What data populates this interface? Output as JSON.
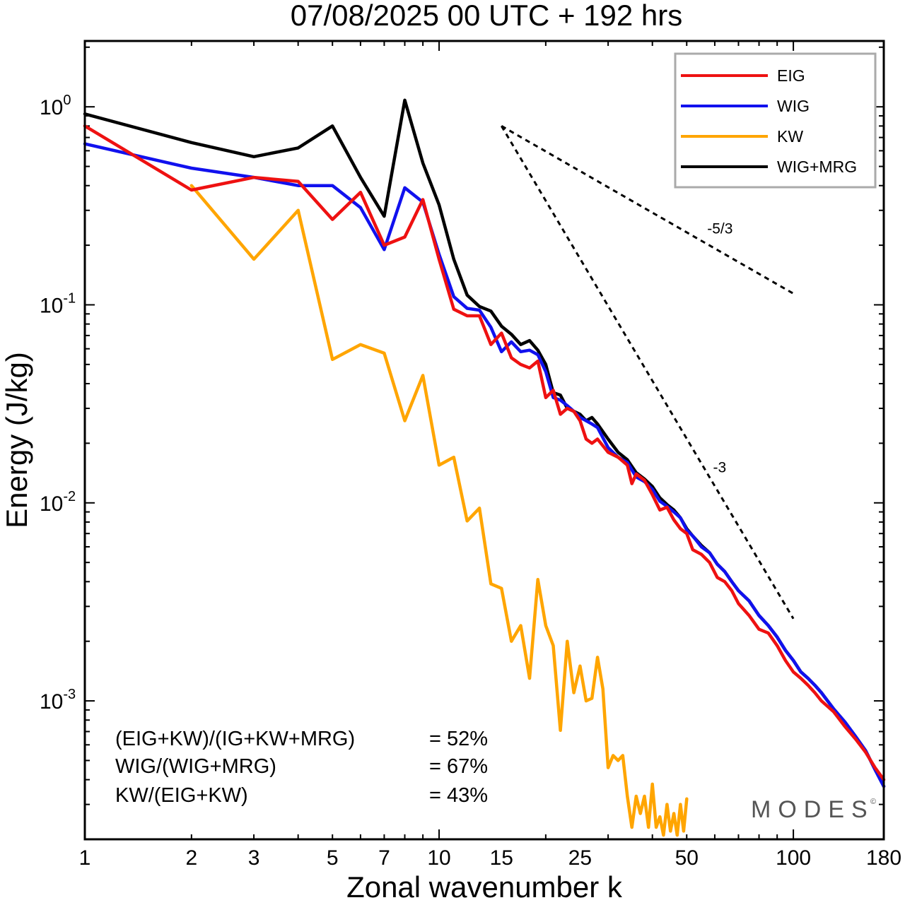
{
  "chart_data": {
    "type": "line",
    "title": "07/08/2025  00 UTC  + 192 hrs",
    "xlabel": "Zonal wavenumber k",
    "ylabel": "Energy (J/kg)",
    "xscale": "log",
    "yscale": "log",
    "xlim": [
      1,
      180
    ],
    "ylim": [
      0.0002,
      2.15
    ],
    "xticks": [
      1,
      2,
      3,
      5,
      7,
      10,
      15,
      25,
      50,
      100,
      180
    ],
    "yticks": [
      {
        "value": 1,
        "base": "10",
        "exp": "0"
      },
      {
        "value": 0.1,
        "base": "10",
        "exp": "-1"
      },
      {
        "value": 0.01,
        "base": "10",
        "exp": "-2"
      },
      {
        "value": 0.001,
        "base": "10",
        "exp": "-3"
      }
    ],
    "legend_position": "top-right",
    "series": [
      {
        "name": "EIG",
        "color": "#ee1111",
        "points": [
          [
            1,
            0.8
          ],
          [
            2,
            0.38
          ],
          [
            3,
            0.44
          ],
          [
            4,
            0.42
          ],
          [
            5,
            0.27
          ],
          [
            6,
            0.37
          ],
          [
            7,
            0.2
          ],
          [
            8,
            0.22
          ],
          [
            9,
            0.34
          ],
          [
            10,
            0.17
          ],
          [
            11,
            0.095
          ],
          [
            12,
            0.088
          ],
          [
            13,
            0.088
          ],
          [
            14,
            0.063
          ],
          [
            15,
            0.072
          ],
          [
            16,
            0.054
          ],
          [
            17,
            0.05
          ],
          [
            18,
            0.048
          ],
          [
            19,
            0.052
          ],
          [
            20,
            0.034
          ],
          [
            21,
            0.037
          ],
          [
            22,
            0.028
          ],
          [
            23,
            0.03
          ],
          [
            24,
            0.029
          ],
          [
            25,
            0.026
          ],
          [
            26,
            0.021
          ],
          [
            27,
            0.02
          ],
          [
            28,
            0.021
          ],
          [
            30,
            0.018
          ],
          [
            32,
            0.017
          ],
          [
            34,
            0.0155
          ],
          [
            35,
            0.0125
          ],
          [
            36,
            0.014
          ],
          [
            38,
            0.013
          ],
          [
            40,
            0.011
          ],
          [
            42,
            0.0092
          ],
          [
            44,
            0.0095
          ],
          [
            46,
            0.0082
          ],
          [
            48,
            0.0074
          ],
          [
            50,
            0.007
          ],
          [
            52,
            0.0058
          ],
          [
            55,
            0.0055
          ],
          [
            58,
            0.005
          ],
          [
            61,
            0.0042
          ],
          [
            64,
            0.004
          ],
          [
            67,
            0.0036
          ],
          [
            70,
            0.0031
          ],
          [
            75,
            0.0027
          ],
          [
            80,
            0.0023
          ],
          [
            85,
            0.0022
          ],
          [
            90,
            0.0019
          ],
          [
            95,
            0.0016
          ],
          [
            100,
            0.0014
          ],
          [
            105,
            0.0013
          ],
          [
            110,
            0.0012
          ],
          [
            115,
            0.0011
          ],
          [
            120,
            0.001
          ],
          [
            130,
            0.00088
          ],
          [
            140,
            0.00074
          ],
          [
            150,
            0.00064
          ],
          [
            160,
            0.00055
          ],
          [
            170,
            0.00046
          ],
          [
            180,
            0.0004
          ]
        ]
      },
      {
        "name": "WIG",
        "color": "#1111ee",
        "points": [
          [
            1,
            0.65
          ],
          [
            2,
            0.49
          ],
          [
            3,
            0.44
          ],
          [
            4,
            0.4
          ],
          [
            5,
            0.4
          ],
          [
            6,
            0.31
          ],
          [
            7,
            0.19
          ],
          [
            8,
            0.39
          ],
          [
            9,
            0.33
          ],
          [
            10,
            0.18
          ],
          [
            11,
            0.11
          ],
          [
            12,
            0.096
          ],
          [
            13,
            0.094
          ],
          [
            14,
            0.077
          ],
          [
            15,
            0.058
          ],
          [
            16,
            0.065
          ],
          [
            17,
            0.058
          ],
          [
            18,
            0.059
          ],
          [
            19,
            0.056
          ],
          [
            20,
            0.046
          ],
          [
            21,
            0.034
          ],
          [
            22,
            0.033
          ],
          [
            23,
            0.031
          ],
          [
            24,
            0.029
          ],
          [
            25,
            0.027
          ],
          [
            26,
            0.026
          ],
          [
            27,
            0.025
          ],
          [
            28,
            0.024
          ],
          [
            30,
            0.019
          ],
          [
            32,
            0.017
          ],
          [
            34,
            0.016
          ],
          [
            36,
            0.0135
          ],
          [
            38,
            0.0128
          ],
          [
            40,
            0.0117
          ],
          [
            42,
            0.0102
          ],
          [
            44,
            0.0096
          ],
          [
            46,
            0.009
          ],
          [
            48,
            0.0084
          ],
          [
            50,
            0.0073
          ],
          [
            52,
            0.0068
          ],
          [
            55,
            0.006
          ],
          [
            58,
            0.0056
          ],
          [
            61,
            0.0049
          ],
          [
            64,
            0.0045
          ],
          [
            67,
            0.004
          ],
          [
            70,
            0.0036
          ],
          [
            75,
            0.0032
          ],
          [
            80,
            0.0027
          ],
          [
            85,
            0.0024
          ],
          [
            90,
            0.0021
          ],
          [
            95,
            0.0018
          ],
          [
            100,
            0.0016
          ],
          [
            105,
            0.0014
          ],
          [
            110,
            0.0013
          ],
          [
            115,
            0.0012
          ],
          [
            120,
            0.0011
          ],
          [
            130,
            0.00091
          ],
          [
            140,
            0.00078
          ],
          [
            150,
            0.00066
          ],
          [
            160,
            0.00056
          ],
          [
            170,
            0.00045
          ],
          [
            180,
            0.00037
          ]
        ]
      },
      {
        "name": "KW",
        "color": "#ffa500",
        "points": [
          [
            2,
            0.4
          ],
          [
            3,
            0.17
          ],
          [
            4,
            0.3
          ],
          [
            5,
            0.053
          ],
          [
            6,
            0.063
          ],
          [
            7,
            0.057
          ],
          [
            8,
            0.026
          ],
          [
            9,
            0.044
          ],
          [
            10,
            0.0155
          ],
          [
            11,
            0.017
          ],
          [
            12,
            0.0081
          ],
          [
            13,
            0.0094
          ],
          [
            14,
            0.0039
          ],
          [
            15,
            0.0037
          ],
          [
            16,
            0.002
          ],
          [
            17,
            0.0024
          ],
          [
            18,
            0.0013
          ],
          [
            19,
            0.0041
          ],
          [
            20,
            0.0024
          ],
          [
            21,
            0.0019
          ],
          [
            22,
            0.00071
          ],
          [
            23,
            0.002
          ],
          [
            24,
            0.0011
          ],
          [
            25,
            0.0015
          ],
          [
            26,
            0.001
          ],
          [
            27,
            0.00103
          ],
          [
            28,
            0.00166
          ],
          [
            29,
            0.00115
          ],
          [
            30,
            0.00046
          ],
          [
            31,
            0.00053
          ],
          [
            32,
            0.0005
          ],
          [
            33,
            0.00053
          ],
          [
            34,
            0.00033
          ],
          [
            35,
            0.00023
          ],
          [
            36,
            0.00033
          ],
          [
            37,
            0.00027
          ],
          [
            38,
            0.00033
          ],
          [
            39,
            0.00023
          ],
          [
            40,
            0.00038
          ],
          [
            41,
            0.00023
          ],
          [
            42,
            0.00026
          ],
          [
            43,
            0.00021
          ],
          [
            44,
            0.0003
          ],
          [
            45,
            0.00022
          ],
          [
            46,
            0.00027
          ],
          [
            47,
            0.00021
          ],
          [
            48,
            0.0003
          ],
          [
            49,
            0.00022
          ],
          [
            50,
            0.00032
          ]
        ]
      },
      {
        "name": "WIG+MRG",
        "color": "#000000",
        "points": [
          [
            1,
            0.92
          ],
          [
            2,
            0.66
          ],
          [
            3,
            0.56
          ],
          [
            4,
            0.62
          ],
          [
            5,
            0.8
          ],
          [
            6,
            0.44
          ],
          [
            7,
            0.28
          ],
          [
            8,
            1.08
          ],
          [
            9,
            0.52
          ],
          [
            10,
            0.32
          ],
          [
            11,
            0.17
          ],
          [
            12,
            0.112
          ],
          [
            13,
            0.098
          ],
          [
            14,
            0.093
          ],
          [
            15,
            0.078
          ],
          [
            16,
            0.071
          ],
          [
            17,
            0.063
          ],
          [
            18,
            0.066
          ],
          [
            19,
            0.059
          ],
          [
            20,
            0.05
          ],
          [
            21,
            0.036
          ],
          [
            22,
            0.035
          ],
          [
            23,
            0.03
          ],
          [
            24,
            0.029
          ],
          [
            25,
            0.028
          ],
          [
            26,
            0.026
          ],
          [
            27,
            0.027
          ],
          [
            28,
            0.025
          ],
          [
            30,
            0.021
          ],
          [
            32,
            0.018
          ],
          [
            34,
            0.0165
          ],
          [
            36,
            0.0142
          ],
          [
            38,
            0.0132
          ],
          [
            40,
            0.0121
          ],
          [
            42,
            0.0106
          ],
          [
            44,
            0.0098
          ],
          [
            46,
            0.0092
          ],
          [
            48,
            0.0084
          ],
          [
            50,
            0.0074
          ],
          [
            52,
            0.0068
          ],
          [
            55,
            0.0061
          ],
          [
            58,
            0.0056
          ],
          [
            61,
            0.0049
          ],
          [
            64,
            0.0045
          ],
          [
            67,
            0.004
          ],
          [
            70,
            0.0036
          ],
          [
            75,
            0.0032
          ],
          [
            80,
            0.0027
          ],
          [
            85,
            0.0024
          ],
          [
            90,
            0.0021
          ],
          [
            95,
            0.0018
          ],
          [
            100,
            0.0016
          ],
          [
            105,
            0.0014
          ],
          [
            110,
            0.0013
          ],
          [
            115,
            0.0012
          ],
          [
            120,
            0.0011
          ],
          [
            130,
            0.00091
          ],
          [
            140,
            0.00078
          ],
          [
            150,
            0.00066
          ],
          [
            160,
            0.00056
          ],
          [
            170,
            0.00045
          ],
          [
            180,
            0.00037
          ]
        ]
      }
    ],
    "reference_slopes": [
      {
        "label": "-5/3",
        "start": [
          15,
          0.8
        ],
        "end": [
          100,
          0.114
        ]
      },
      {
        "label": "-3",
        "start": [
          15,
          0.8
        ],
        "end": [
          100,
          0.0026
        ]
      }
    ],
    "annotations": {
      "stats": [
        {
          "label": "(EIG+KW)/(IG+KW+MRG)",
          "value": "= 52%"
        },
        {
          "label": "WIG/(WIG+MRG)",
          "value": "= 67%"
        },
        {
          "label": "KW/(EIG+KW)",
          "value": "= 43%"
        }
      ],
      "brand": "MODES",
      "brand_mark": "©"
    }
  }
}
